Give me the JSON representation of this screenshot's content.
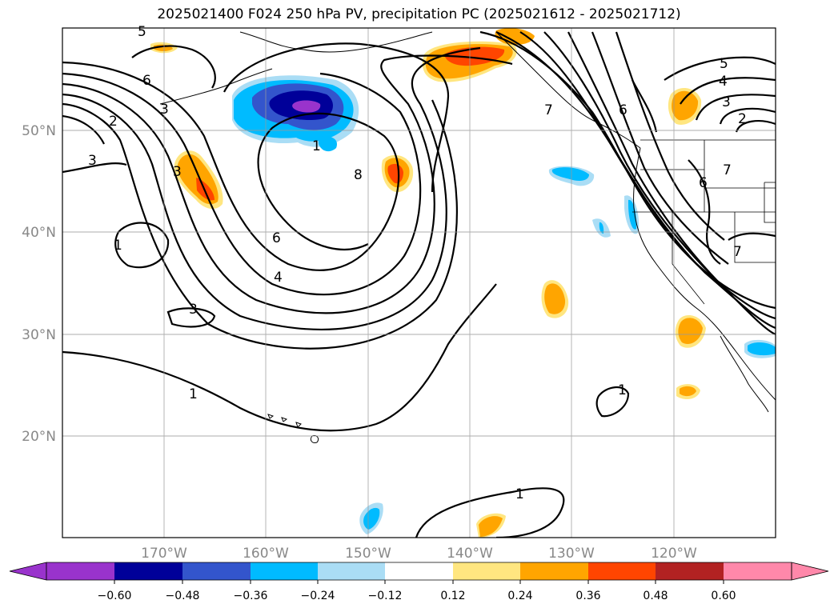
{
  "title": "2025021400 F024 250 hPa PV, precipitation PC (2025021612 - 2025021712)",
  "map": {
    "lat_labels": [
      "50°N",
      "40°N",
      "30°N",
      "20°N"
    ],
    "lon_labels": [
      "170°W",
      "160°W",
      "150°W",
      "140°W",
      "130°W",
      "120°W"
    ],
    "grid": true,
    "contour_labels": [
      "5",
      "6",
      "3",
      "2",
      "3",
      "1",
      "3",
      "1",
      "8",
      "6",
      "4",
      "3",
      "1",
      "1",
      "1",
      "5",
      "4",
      "3",
      "2",
      "6",
      "6",
      "7",
      "7",
      "7"
    ]
  },
  "colorbar": {
    "tick_labels": [
      "−0.60",
      "−0.48",
      "−0.36",
      "−0.24",
      "−0.12",
      "0.12",
      "0.24",
      "0.36",
      "0.48",
      "0.60"
    ],
    "colors": [
      "#9933cc",
      "#000099",
      "#3355cc",
      "#00bbff",
      "#aaddf5",
      "#ffffff",
      "#ffe680",
      "#ffa500",
      "#ff4500",
      "#b22222",
      "#ff88aa"
    ],
    "extend": "both"
  }
}
